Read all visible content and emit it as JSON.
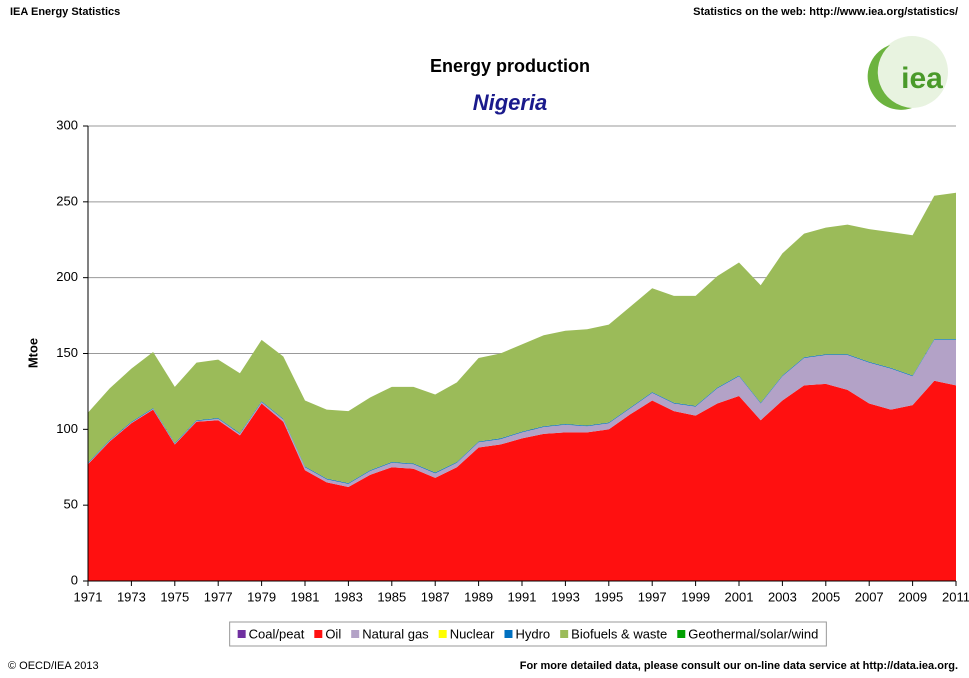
{
  "chart_data": {
    "type": "stacked_area",
    "header_left": "IEA Energy Statistics",
    "header_right": "Statistics on the web: http://www.iea.org/statistics/",
    "logo": "iea",
    "title": "Energy production",
    "subtitle": "Nigeria",
    "ylabel": "Mtoe",
    "footer_left": "© OECD/IEA 2013",
    "footer_right": "For more detailed data, please consult our on-line data service at http://data.iea.org.",
    "x": [
      1971,
      1972,
      1973,
      1974,
      1975,
      1976,
      1977,
      1978,
      1979,
      1980,
      1981,
      1982,
      1983,
      1984,
      1985,
      1986,
      1987,
      1988,
      1989,
      1990,
      1991,
      1992,
      1993,
      1994,
      1995,
      1996,
      1997,
      1998,
      1999,
      2000,
      2001,
      2002,
      2003,
      2004,
      2005,
      2006,
      2007,
      2008,
      2009,
      2010,
      2011
    ],
    "xlim": [
      1971,
      2011
    ],
    "xticks": [
      1971,
      1973,
      1975,
      1977,
      1979,
      1981,
      1983,
      1985,
      1987,
      1989,
      1991,
      1993,
      1995,
      1997,
      1999,
      2001,
      2003,
      2005,
      2007,
      2009,
      2011
    ],
    "ylim": [
      0,
      300
    ],
    "yticks": [
      0,
      50,
      100,
      150,
      200,
      250,
      300
    ],
    "grid": true,
    "series": [
      {
        "name": "Coal/peat",
        "color": "#7030a0",
        "values": [
          0,
          0,
          0,
          0,
          0,
          0,
          0,
          0,
          0,
          0,
          0,
          0,
          0,
          0,
          0,
          0,
          0,
          0,
          0,
          0,
          0,
          0,
          0,
          0,
          0,
          0,
          0,
          0,
          0,
          0,
          0,
          0,
          0,
          0,
          0,
          0,
          0,
          0,
          0,
          0,
          0
        ]
      },
      {
        "name": "Oil",
        "color": "#ff1010",
        "values": [
          77,
          92,
          104,
          113,
          90,
          105,
          106,
          96,
          117,
          105,
          73,
          65,
          62,
          70,
          75,
          74,
          68,
          75,
          88,
          90,
          94,
          97,
          98,
          98,
          100,
          110,
          119,
          112,
          109,
          117,
          122,
          106,
          119,
          129,
          130,
          126,
          117,
          113,
          116,
          132,
          129
        ]
      },
      {
        "name": "Natural gas",
        "color": "#b3a2c7",
        "values": [
          0.5,
          0.5,
          0.5,
          0.5,
          0.5,
          0.5,
          1,
          1,
          1,
          1.5,
          2,
          2,
          2,
          2.5,
          3,
          3,
          3,
          3,
          3.5,
          3.5,
          4,
          4.5,
          5,
          4,
          4,
          4,
          5,
          5,
          6,
          10,
          13,
          11,
          16,
          18,
          19,
          23,
          27,
          27,
          19,
          27,
          30
        ]
      },
      {
        "name": "Nuclear",
        "color": "#ffff00",
        "values": [
          0,
          0,
          0,
          0,
          0,
          0,
          0,
          0,
          0,
          0,
          0,
          0,
          0,
          0,
          0,
          0,
          0,
          0,
          0,
          0,
          0,
          0,
          0,
          0,
          0,
          0,
          0,
          0,
          0,
          0,
          0,
          0,
          0,
          0,
          0,
          0,
          0,
          0,
          0,
          0,
          0
        ]
      },
      {
        "name": "Hydro",
        "color": "#0070c0",
        "values": [
          0.5,
          0.5,
          0.5,
          0.5,
          0.5,
          0.5,
          0.5,
          0.5,
          0.5,
          0.5,
          0.5,
          0.5,
          0.5,
          0.5,
          0.5,
          0.5,
          0.5,
          0.5,
          0.5,
          0.5,
          0.5,
          0.5,
          0.5,
          0.5,
          0.5,
          0.5,
          0.5,
          0.5,
          0.5,
          0.5,
          0.5,
          0.5,
          0.5,
          0.5,
          0.5,
          0.5,
          0.5,
          0.5,
          0.5,
          0.5,
          0.5
        ]
      },
      {
        "name": "Biofuels & waste",
        "color": "#9bbb59",
        "values": [
          33,
          34,
          35,
          37,
          37,
          38,
          38.5,
          39.5,
          40.5,
          41,
          43.5,
          45.5,
          47.5,
          48,
          49.5,
          50.5,
          51.5,
          52.5,
          55,
          56,
          57.5,
          60,
          61.5,
          63.5,
          64.5,
          66.5,
          68.5,
          70.5,
          72.5,
          73.5,
          74.5,
          77.5,
          80.5,
          81.5,
          83.5,
          85.5,
          87.5,
          89.5,
          92.5,
          94.5,
          96.5
        ]
      },
      {
        "name": "Geothermal/solar/wind",
        "color": "#00a000",
        "values": [
          0,
          0,
          0,
          0,
          0,
          0,
          0,
          0,
          0,
          0,
          0,
          0,
          0,
          0,
          0,
          0,
          0,
          0,
          0,
          0,
          0,
          0,
          0,
          0,
          0,
          0,
          0,
          0,
          0,
          0,
          0,
          0,
          0,
          0,
          0,
          0,
          0,
          0,
          0,
          0,
          0
        ]
      }
    ]
  }
}
